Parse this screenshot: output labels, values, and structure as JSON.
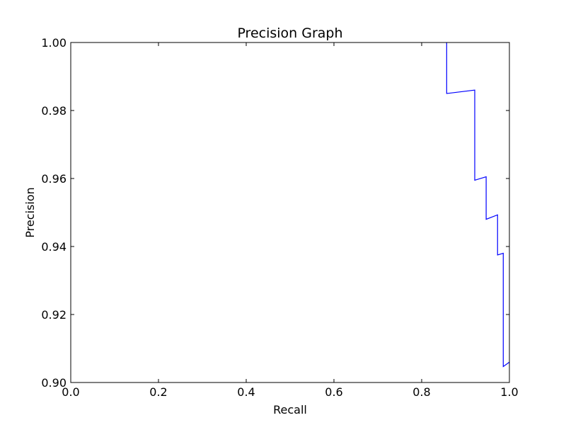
{
  "chart_data": {
    "type": "line",
    "title": "Precision Graph",
    "xlabel": "Recall",
    "ylabel": "Precision",
    "xlim": [
      0.0,
      1.0
    ],
    "ylim": [
      0.9,
      1.0
    ],
    "grid": false,
    "x_ticks": [
      "0.0",
      "0.2",
      "0.4",
      "0.6",
      "0.8",
      "1.0"
    ],
    "y_ticks": [
      "0.90",
      "0.92",
      "0.94",
      "0.96",
      "0.98",
      "1.00"
    ],
    "series": [
      {
        "color": "#0000ff",
        "points": [
          [
            0.857,
            1.0
          ],
          [
            0.857,
            0.985
          ],
          [
            0.921,
            0.986
          ],
          [
            0.921,
            0.9595
          ],
          [
            0.947,
            0.9605
          ],
          [
            0.947,
            0.948
          ],
          [
            0.973,
            0.9493
          ],
          [
            0.973,
            0.9375
          ],
          [
            0.986,
            0.938
          ],
          [
            0.986,
            0.9047
          ],
          [
            1.0,
            0.906
          ]
        ]
      }
    ]
  }
}
